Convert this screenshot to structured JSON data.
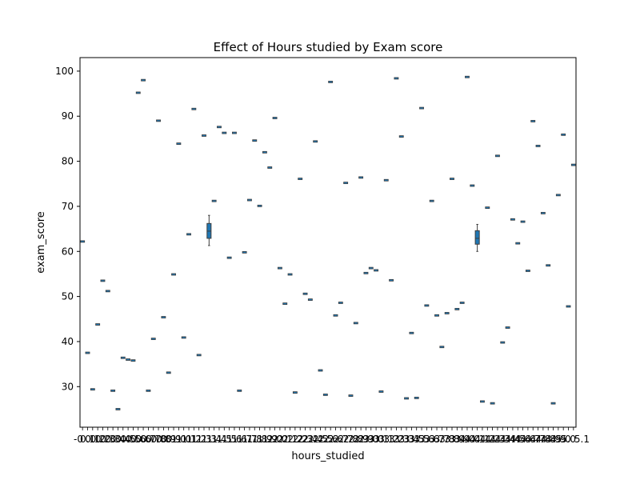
{
  "chart_data": {
    "type": "box",
    "title": "Effect of Hours studied by Exam score",
    "xlabel": "hours_studied",
    "ylabel": "exam_score",
    "ylim": [
      21,
      103
    ],
    "yticks": [
      30,
      40,
      50,
      60,
      70,
      80,
      90,
      100
    ],
    "grid": false,
    "legend": null,
    "box_color": "#1f77b4",
    "first_x_tick_label": "-0",
    "last_x_tick_label": "5.1",
    "values": [
      62.2,
      37.5,
      29.4,
      43.8,
      53.5,
      51.2,
      29.1,
      25.0,
      36.4,
      36.0,
      35.8,
      95.2,
      98.0,
      29.1,
      40.6,
      89.0,
      45.4,
      33.1,
      54.9,
      83.9,
      40.9,
      63.8,
      91.6,
      37.0,
      85.7,
      null,
      71.2,
      87.6,
      86.3,
      58.6,
      86.3,
      29.1,
      59.8,
      71.4,
      84.6,
      70.1,
      82.0,
      78.6,
      89.6,
      56.3,
      48.4,
      54.9,
      28.7,
      76.1,
      50.6,
      49.3,
      84.4,
      33.6,
      28.2,
      97.6,
      45.8,
      48.6,
      75.2,
      28.0,
      44.1,
      76.4,
      55.2,
      56.3,
      55.8,
      28.9,
      75.8,
      53.6,
      98.4,
      85.5,
      27.4,
      41.9,
      27.5,
      91.8,
      48.0,
      71.2,
      45.8,
      38.8,
      46.3,
      76.1,
      47.2,
      48.6,
      98.7,
      74.6,
      null,
      26.7,
      69.7,
      26.3,
      81.2,
      39.8,
      43.1,
      67.1,
      61.8,
      66.6,
      55.7,
      88.9,
      83.4,
      68.5,
      56.9,
      26.3,
      72.5,
      85.9,
      47.8,
      79.2
    ],
    "boxes": [
      {
        "index": 25,
        "q1": 62.9,
        "median": 64.5,
        "q3": 66.2,
        "whisker_low": 61.3,
        "whisker_high": 68.0
      },
      {
        "index": 78,
        "q1": 61.6,
        "median": 62.9,
        "q3": 64.6,
        "whisker_low": 60.0,
        "whisker_high": 66.0
      }
    ]
  }
}
